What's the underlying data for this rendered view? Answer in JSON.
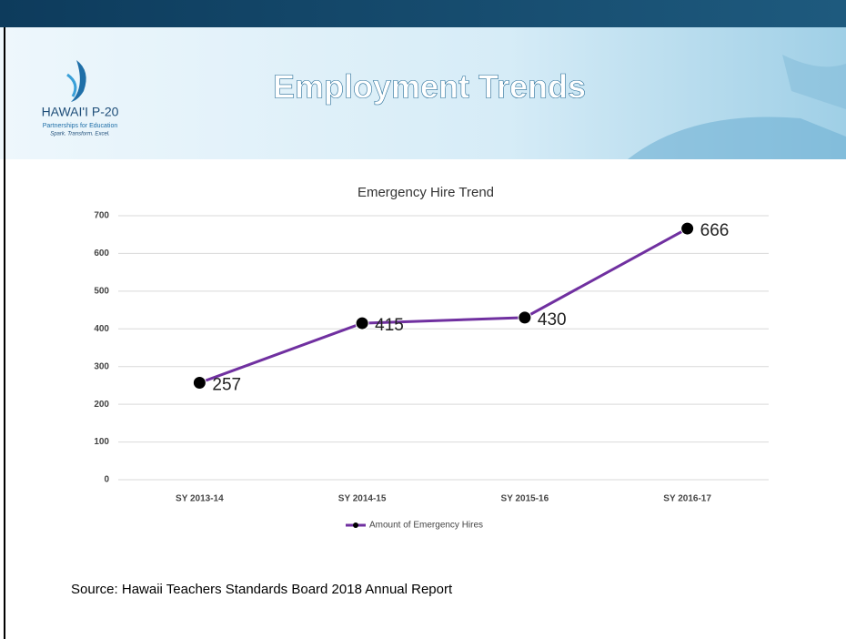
{
  "header": {
    "title": "Employment Trends",
    "logo": {
      "name": "HAWAI'I P-20",
      "line1": "Partnerships for Education",
      "line2": "Spark. Transform. Excel."
    }
  },
  "chart_data": {
    "type": "line",
    "title": "Emergency Hire Trend",
    "categories": [
      "SY 2013-14",
      "SY 2014-15",
      "SY 2015-16",
      "SY 2016-17"
    ],
    "series": [
      {
        "name": "Amount of Emergency Hires",
        "color": "#7030a0",
        "marker_color": "#000000",
        "values": [
          257,
          415,
          430,
          666
        ]
      }
    ],
    "ylim": [
      0,
      700
    ],
    "yticks": [
      0,
      100,
      200,
      300,
      400,
      500,
      600,
      700
    ],
    "grid": true,
    "legend": "bottom"
  },
  "source": "Source: Hawaii Teachers Standards Board 2018 Annual Report"
}
